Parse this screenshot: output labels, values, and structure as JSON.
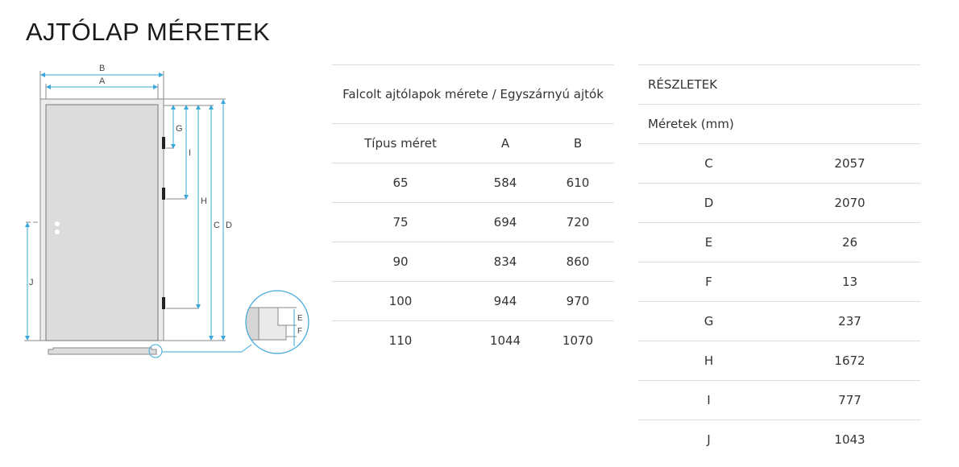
{
  "page_title": "AJTÓLAP MÉRETEK",
  "diagram": {
    "labels": [
      "A",
      "B",
      "C",
      "D",
      "E",
      "F",
      "G",
      "H",
      "I",
      "J"
    ],
    "accent": "#3aa8d8"
  },
  "sizes_table": {
    "title": "Falcolt ajtólapok mérete / Egyszárnyú ajtók",
    "headers": [
      "Típus méret",
      "A",
      "B"
    ],
    "rows": [
      [
        "65",
        "584",
        "610"
      ],
      [
        "75",
        "694",
        "720"
      ],
      [
        "90",
        "834",
        "860"
      ],
      [
        "100",
        "944",
        "970"
      ],
      [
        "110",
        "1044",
        "1070"
      ]
    ]
  },
  "details_table": {
    "title": "RÉSZLETEK",
    "subtitle": "Méretek (mm)",
    "rows": [
      [
        "C",
        "2057"
      ],
      [
        "D",
        "2070"
      ],
      [
        "E",
        "26"
      ],
      [
        "F",
        "13"
      ],
      [
        "G",
        "237"
      ],
      [
        "H",
        "1672"
      ],
      [
        "I",
        "777"
      ],
      [
        "J",
        "1043"
      ]
    ]
  }
}
